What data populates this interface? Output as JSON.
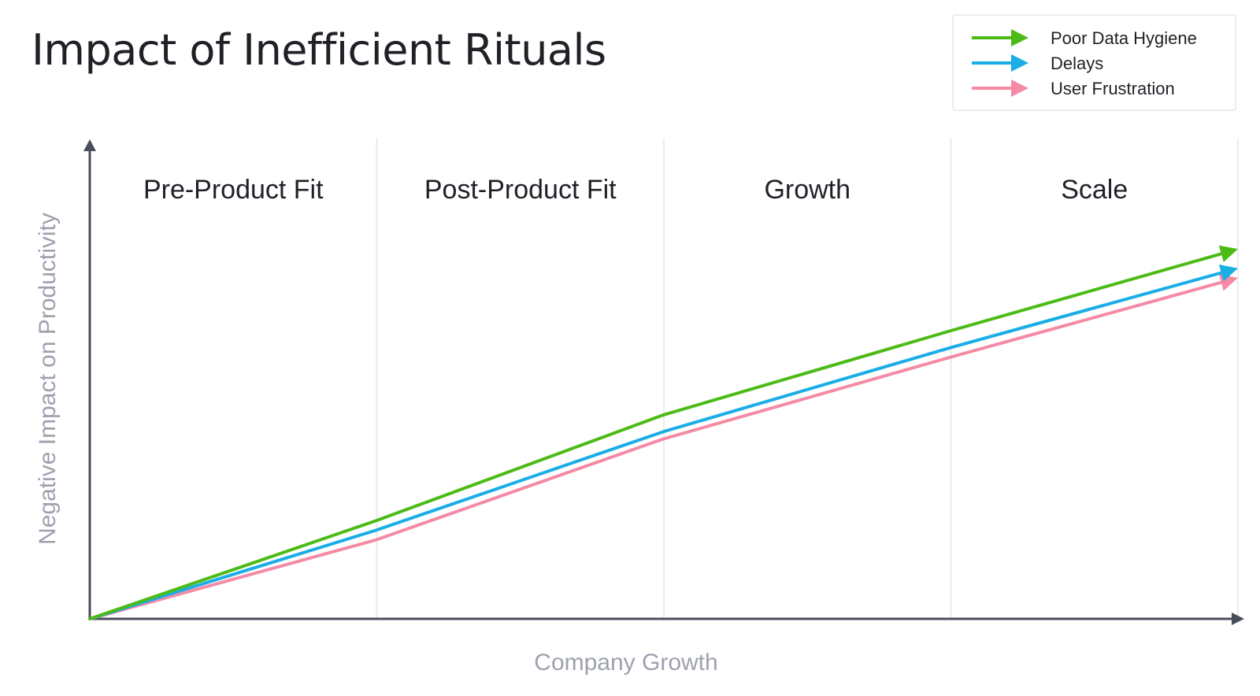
{
  "chart_data": {
    "type": "line",
    "title": "Impact of Inefficient Rituals",
    "xlabel": "Company Growth",
    "ylabel": "Negative Impact on Productivity",
    "x": [
      0,
      1,
      2,
      3,
      4
    ],
    "xlim": [
      0,
      4
    ],
    "ylim": [
      0,
      100
    ],
    "grid": "vertical",
    "legend_position": "top-right",
    "phases": [
      "Pre-Product Fit",
      "Post-Product Fit",
      "Growth",
      "Scale"
    ],
    "series": [
      {
        "name": "Poor Data Hygiene",
        "color": "#4cbb17",
        "values": [
          0,
          20.5,
          42.5,
          60,
          77
        ]
      },
      {
        "name": "Delays",
        "color": "#1aade6",
        "values": [
          0,
          18.5,
          39,
          56.5,
          73
        ]
      },
      {
        "name": "User Frustration",
        "color": "#f58aa5",
        "values": [
          0,
          16.5,
          37.5,
          54.5,
          71
        ]
      }
    ]
  }
}
